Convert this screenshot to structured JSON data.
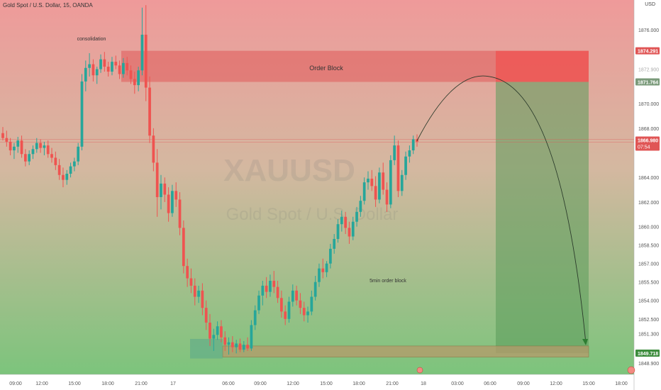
{
  "header": {
    "title": "Gold Spot / U.S. Dollar, 15, OANDA",
    "currency": "USD"
  },
  "watermark": {
    "symbol": "XAUUSD",
    "name": "Gold Spot / U.S. Dollar"
  },
  "annotations": {
    "consolidation": "consolidation",
    "order_block": "Order Block",
    "five_min_ob": "5min order block"
  },
  "price_labels": {
    "stop": "1874.291",
    "entry": "1871.764",
    "current": "1866.980",
    "countdown": "07:54",
    "target": "1849.718"
  },
  "colors": {
    "bullish": "#26a69a",
    "bearish": "#ef5350",
    "order_block": "#e05a5a",
    "profit_zone": "#5a9a5a",
    "stop_zone": "#ef4444",
    "entry_label": "#7a9a7a",
    "target_label": "#3c8c3c"
  },
  "chart_data": {
    "type": "candlestick",
    "title": "Gold Spot / U.S. Dollar, 15, OANDA",
    "y_axis": {
      "ticks": [
        "1876.000",
        "1874.291",
        "1871.764",
        "1870.000",
        "1868.000",
        "1866.980",
        "1864.000",
        "1862.000",
        "1860.000",
        "1858.500",
        "1857.000",
        "1855.500",
        "1854.000",
        "1852.500",
        "1851.300",
        "1849.718",
        "1848.900"
      ],
      "range": [
        1848.1,
        1878.6
      ]
    },
    "x_axis": {
      "ticks": [
        "09:00",
        "12:00",
        "15:00",
        "18:00",
        "21:00",
        "17",
        "03:00",
        "06:00",
        "09:00",
        "12:00",
        "15:00",
        "18:00",
        "21:00",
        "18",
        "03:00",
        "06:00",
        "09:00",
        "12:00",
        "15:00",
        "18:00"
      ]
    },
    "key_levels": {
      "order_block_top": 1874.291,
      "order_block_bottom": 1871.764,
      "current_price": 1866.98,
      "target": 1849.718,
      "five_min_ob_top": 1850.3,
      "five_min_ob_bottom": 1849.4
    },
    "projection": {
      "peak": 1872.2,
      "target": 1849.718
    },
    "candles": [
      {
        "o": 1867.6,
        "h": 1868.1,
        "l": 1867.0,
        "c": 1867.2
      },
      {
        "o": 1867.2,
        "h": 1867.8,
        "l": 1866.5,
        "c": 1866.9
      },
      {
        "o": 1866.9,
        "h": 1867.2,
        "l": 1865.8,
        "c": 1866.2
      },
      {
        "o": 1866.2,
        "h": 1866.8,
        "l": 1865.5,
        "c": 1866.5
      },
      {
        "o": 1866.5,
        "h": 1867.3,
        "l": 1866.0,
        "c": 1867.0
      },
      {
        "o": 1867.0,
        "h": 1867.4,
        "l": 1865.6,
        "c": 1865.9
      },
      {
        "o": 1865.9,
        "h": 1866.3,
        "l": 1864.9,
        "c": 1865.3
      },
      {
        "o": 1865.3,
        "h": 1866.2,
        "l": 1865.0,
        "c": 1865.9
      },
      {
        "o": 1865.9,
        "h": 1866.6,
        "l": 1865.5,
        "c": 1866.3
      },
      {
        "o": 1866.3,
        "h": 1867.2,
        "l": 1866.0,
        "c": 1866.8
      },
      {
        "o": 1866.8,
        "h": 1867.1,
        "l": 1866.0,
        "c": 1866.4
      },
      {
        "o": 1866.4,
        "h": 1866.9,
        "l": 1865.8,
        "c": 1866.6
      },
      {
        "o": 1866.6,
        "h": 1867.0,
        "l": 1865.6,
        "c": 1865.9
      },
      {
        "o": 1865.9,
        "h": 1866.4,
        "l": 1865.2,
        "c": 1865.6
      },
      {
        "o": 1865.6,
        "h": 1866.1,
        "l": 1864.6,
        "c": 1865.0
      },
      {
        "o": 1865.0,
        "h": 1865.5,
        "l": 1863.8,
        "c": 1864.2
      },
      {
        "o": 1864.2,
        "h": 1864.8,
        "l": 1863.2,
        "c": 1863.8
      },
      {
        "o": 1863.8,
        "h": 1864.6,
        "l": 1863.4,
        "c": 1864.3
      },
      {
        "o": 1864.3,
        "h": 1865.2,
        "l": 1864.0,
        "c": 1864.9
      },
      {
        "o": 1864.9,
        "h": 1865.6,
        "l": 1864.5,
        "c": 1865.3
      },
      {
        "o": 1865.3,
        "h": 1866.8,
        "l": 1865.0,
        "c": 1866.5
      },
      {
        "o": 1866.5,
        "h": 1872.4,
        "l": 1866.2,
        "c": 1871.8
      },
      {
        "o": 1871.8,
        "h": 1873.5,
        "l": 1871.0,
        "c": 1872.9
      },
      {
        "o": 1872.9,
        "h": 1874.1,
        "l": 1872.2,
        "c": 1873.2
      },
      {
        "o": 1873.2,
        "h": 1873.6,
        "l": 1871.8,
        "c": 1872.3
      },
      {
        "o": 1872.3,
        "h": 1873.0,
        "l": 1871.6,
        "c": 1872.8
      },
      {
        "o": 1872.8,
        "h": 1874.0,
        "l": 1872.5,
        "c": 1873.6
      },
      {
        "o": 1873.6,
        "h": 1874.2,
        "l": 1872.6,
        "c": 1873.0
      },
      {
        "o": 1873.0,
        "h": 1873.4,
        "l": 1872.2,
        "c": 1872.6
      },
      {
        "o": 1872.6,
        "h": 1873.8,
        "l": 1872.3,
        "c": 1873.4
      },
      {
        "o": 1873.4,
        "h": 1873.9,
        "l": 1872.8,
        "c": 1873.1
      },
      {
        "o": 1873.1,
        "h": 1873.5,
        "l": 1872.0,
        "c": 1872.4
      },
      {
        "o": 1872.4,
        "h": 1873.7,
        "l": 1872.1,
        "c": 1873.3
      },
      {
        "o": 1873.3,
        "h": 1873.8,
        "l": 1872.3,
        "c": 1872.7
      },
      {
        "o": 1872.7,
        "h": 1873.1,
        "l": 1871.6,
        "c": 1872.0
      },
      {
        "o": 1872.0,
        "h": 1872.6,
        "l": 1870.8,
        "c": 1871.5
      },
      {
        "o": 1871.5,
        "h": 1873.0,
        "l": 1871.0,
        "c": 1872.7
      },
      {
        "o": 1872.7,
        "h": 1877.8,
        "l": 1872.3,
        "c": 1875.6
      },
      {
        "o": 1875.6,
        "h": 1878.0,
        "l": 1870.2,
        "c": 1871.3
      },
      {
        "o": 1871.3,
        "h": 1872.2,
        "l": 1866.8,
        "c": 1867.4
      },
      {
        "o": 1867.4,
        "h": 1868.0,
        "l": 1864.5,
        "c": 1865.2
      },
      {
        "o": 1865.2,
        "h": 1866.3,
        "l": 1860.8,
        "c": 1862.4
      },
      {
        "o": 1862.4,
        "h": 1864.2,
        "l": 1861.4,
        "c": 1863.5
      },
      {
        "o": 1863.5,
        "h": 1864.0,
        "l": 1862.0,
        "c": 1862.6
      },
      {
        "o": 1862.6,
        "h": 1863.2,
        "l": 1860.4,
        "c": 1861.1
      },
      {
        "o": 1861.1,
        "h": 1863.4,
        "l": 1860.8,
        "c": 1862.9
      },
      {
        "o": 1862.9,
        "h": 1863.6,
        "l": 1861.6,
        "c": 1862.2
      },
      {
        "o": 1862.2,
        "h": 1862.8,
        "l": 1859.3,
        "c": 1859.9
      },
      {
        "o": 1859.9,
        "h": 1860.5,
        "l": 1856.2,
        "c": 1856.8
      },
      {
        "o": 1856.8,
        "h": 1857.4,
        "l": 1855.1,
        "c": 1855.8
      },
      {
        "o": 1855.8,
        "h": 1856.6,
        "l": 1854.6,
        "c": 1855.2
      },
      {
        "o": 1855.2,
        "h": 1855.8,
        "l": 1853.6,
        "c": 1854.3
      },
      {
        "o": 1854.3,
        "h": 1855.2,
        "l": 1853.8,
        "c": 1854.8
      },
      {
        "o": 1854.8,
        "h": 1855.4,
        "l": 1852.8,
        "c": 1853.4
      },
      {
        "o": 1853.4,
        "h": 1854.0,
        "l": 1851.6,
        "c": 1852.2
      },
      {
        "o": 1852.2,
        "h": 1852.9,
        "l": 1850.3,
        "c": 1850.9
      },
      {
        "o": 1850.9,
        "h": 1851.7,
        "l": 1849.9,
        "c": 1851.2
      },
      {
        "o": 1851.2,
        "h": 1852.3,
        "l": 1850.8,
        "c": 1851.9
      },
      {
        "o": 1851.9,
        "h": 1852.4,
        "l": 1850.6,
        "c": 1851.0
      },
      {
        "o": 1851.0,
        "h": 1851.5,
        "l": 1849.9,
        "c": 1850.4
      },
      {
        "o": 1850.4,
        "h": 1851.0,
        "l": 1849.6,
        "c": 1850.6
      },
      {
        "o": 1850.6,
        "h": 1851.1,
        "l": 1849.8,
        "c": 1850.2
      },
      {
        "o": 1850.2,
        "h": 1850.8,
        "l": 1849.7,
        "c": 1850.5
      },
      {
        "o": 1850.5,
        "h": 1850.9,
        "l": 1849.8,
        "c": 1850.0
      },
      {
        "o": 1850.0,
        "h": 1850.7,
        "l": 1849.8,
        "c": 1850.4
      },
      {
        "o": 1850.4,
        "h": 1851.0,
        "l": 1849.9,
        "c": 1850.1
      },
      {
        "o": 1850.1,
        "h": 1852.4,
        "l": 1849.9,
        "c": 1852.0
      },
      {
        "o": 1852.0,
        "h": 1853.6,
        "l": 1851.6,
        "c": 1853.2
      },
      {
        "o": 1853.2,
        "h": 1854.8,
        "l": 1852.9,
        "c": 1854.4
      },
      {
        "o": 1854.4,
        "h": 1855.6,
        "l": 1853.6,
        "c": 1855.2
      },
      {
        "o": 1855.2,
        "h": 1855.9,
        "l": 1854.2,
        "c": 1854.7
      },
      {
        "o": 1854.7,
        "h": 1856.1,
        "l": 1854.3,
        "c": 1855.6
      },
      {
        "o": 1855.6,
        "h": 1856.4,
        "l": 1854.6,
        "c": 1855.1
      },
      {
        "o": 1855.1,
        "h": 1855.6,
        "l": 1853.8,
        "c": 1854.2
      },
      {
        "o": 1854.2,
        "h": 1854.8,
        "l": 1852.6,
        "c": 1853.1
      },
      {
        "o": 1853.1,
        "h": 1853.6,
        "l": 1852.0,
        "c": 1852.5
      },
      {
        "o": 1852.5,
        "h": 1854.3,
        "l": 1852.2,
        "c": 1853.9
      },
      {
        "o": 1853.9,
        "h": 1855.3,
        "l": 1853.5,
        "c": 1854.8
      },
      {
        "o": 1854.8,
        "h": 1855.2,
        "l": 1853.6,
        "c": 1854.0
      },
      {
        "o": 1854.0,
        "h": 1854.6,
        "l": 1852.9,
        "c": 1853.4
      },
      {
        "o": 1853.4,
        "h": 1853.9,
        "l": 1852.3,
        "c": 1852.8
      },
      {
        "o": 1852.8,
        "h": 1853.5,
        "l": 1852.2,
        "c": 1853.1
      },
      {
        "o": 1853.1,
        "h": 1854.8,
        "l": 1852.8,
        "c": 1854.3
      },
      {
        "o": 1854.3,
        "h": 1856.0,
        "l": 1854.0,
        "c": 1855.5
      },
      {
        "o": 1855.5,
        "h": 1857.0,
        "l": 1855.1,
        "c": 1856.6
      },
      {
        "o": 1856.6,
        "h": 1857.4,
        "l": 1855.8,
        "c": 1856.3
      },
      {
        "o": 1856.3,
        "h": 1857.2,
        "l": 1855.9,
        "c": 1857.0
      },
      {
        "o": 1857.0,
        "h": 1858.6,
        "l": 1856.6,
        "c": 1858.2
      },
      {
        "o": 1858.2,
        "h": 1859.4,
        "l": 1857.8,
        "c": 1859.0
      },
      {
        "o": 1859.0,
        "h": 1860.6,
        "l": 1858.7,
        "c": 1860.2
      },
      {
        "o": 1860.2,
        "h": 1861.3,
        "l": 1859.6,
        "c": 1860.8
      },
      {
        "o": 1860.8,
        "h": 1861.2,
        "l": 1859.4,
        "c": 1859.9
      },
      {
        "o": 1859.9,
        "h": 1860.4,
        "l": 1858.6,
        "c": 1859.2
      },
      {
        "o": 1859.2,
        "h": 1860.8,
        "l": 1858.9,
        "c": 1860.4
      },
      {
        "o": 1860.4,
        "h": 1861.6,
        "l": 1860.0,
        "c": 1861.2
      },
      {
        "o": 1861.2,
        "h": 1862.5,
        "l": 1860.8,
        "c": 1862.1
      },
      {
        "o": 1862.1,
        "h": 1864.0,
        "l": 1861.8,
        "c": 1863.6
      },
      {
        "o": 1863.6,
        "h": 1864.5,
        "l": 1863.0,
        "c": 1863.9
      },
      {
        "o": 1863.9,
        "h": 1864.6,
        "l": 1862.9,
        "c": 1863.3
      },
      {
        "o": 1863.3,
        "h": 1864.1,
        "l": 1861.6,
        "c": 1862.2
      },
      {
        "o": 1862.2,
        "h": 1864.8,
        "l": 1861.9,
        "c": 1864.4
      },
      {
        "o": 1864.4,
        "h": 1865.2,
        "l": 1862.6,
        "c": 1863.0
      },
      {
        "o": 1863.0,
        "h": 1863.6,
        "l": 1861.2,
        "c": 1861.8
      },
      {
        "o": 1861.8,
        "h": 1865.8,
        "l": 1861.5,
        "c": 1865.4
      },
      {
        "o": 1865.4,
        "h": 1867.4,
        "l": 1865.0,
        "c": 1866.6
      },
      {
        "o": 1866.6,
        "h": 1867.0,
        "l": 1862.4,
        "c": 1862.9
      },
      {
        "o": 1862.9,
        "h": 1864.6,
        "l": 1862.5,
        "c": 1864.2
      },
      {
        "o": 1864.2,
        "h": 1866.1,
        "l": 1863.8,
        "c": 1865.7
      },
      {
        "o": 1865.7,
        "h": 1866.6,
        "l": 1865.2,
        "c": 1866.2
      },
      {
        "o": 1866.2,
        "h": 1867.4,
        "l": 1865.9,
        "c": 1867.1
      },
      {
        "o": 1867.1,
        "h": 1867.5,
        "l": 1866.5,
        "c": 1866.9
      }
    ]
  }
}
